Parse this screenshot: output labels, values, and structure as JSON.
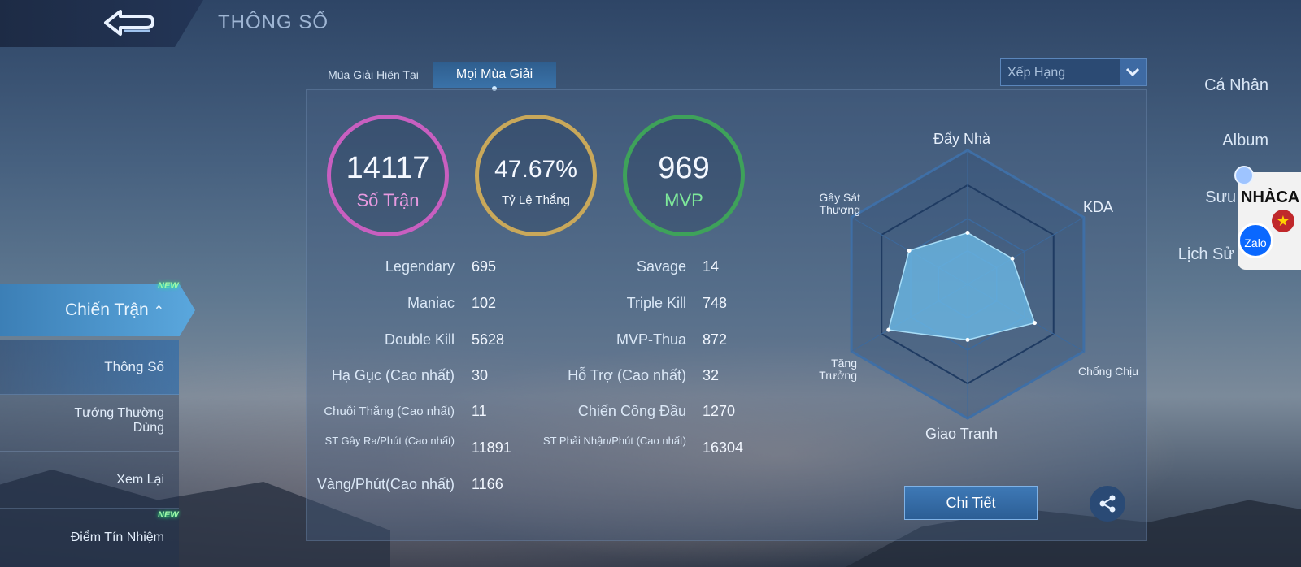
{
  "header": {
    "title": "THÔNG SỐ"
  },
  "sidebar": {
    "items": [
      "Cá Nhân",
      "Album",
      "Sưu Tập",
      "Lịch Sử Đấu"
    ],
    "active": "Chiến Trận",
    "new_badge": "NEW",
    "sub_items": [
      "Thông Số",
      "Tướng Thường Dùng",
      "Xem Lại",
      "Điểm Tín Nhiệm"
    ],
    "sub_new_badge": "NEW"
  },
  "tabs": [
    "Mùa Giải Hiện Tại",
    "Mọi Mùa Giải"
  ],
  "filter": {
    "selected": "Xếp Hạng"
  },
  "summary": {
    "matches": {
      "value": "14117",
      "label": "Số Trận"
    },
    "winrate": {
      "value": "47.67%",
      "label": "Tỷ Lệ Thắng"
    },
    "mvp": {
      "value": "969",
      "label": "MVP"
    }
  },
  "stats_left": [
    {
      "label": "Legendary",
      "value": "695"
    },
    {
      "label": "Maniac",
      "value": "102"
    },
    {
      "label": "Double Kill",
      "value": "5628"
    },
    {
      "label": "Hạ Gục (Cao nhất)",
      "value": "30"
    },
    {
      "label": "Chuỗi Thắng (Cao nhất)",
      "value": "11"
    },
    {
      "label": "ST Gây Ra/Phút (Cao nhất)",
      "value": "11891"
    },
    {
      "label": "Vàng/Phút(Cao nhất)",
      "value": "1166"
    }
  ],
  "stats_right": [
    {
      "label": "Savage",
      "value": "14"
    },
    {
      "label": "Triple Kill",
      "value": "748"
    },
    {
      "label": "MVP-Thua",
      "value": "872"
    },
    {
      "label": "Hỗ Trợ (Cao nhất)",
      "value": "32"
    },
    {
      "label": "Chiến Công Đầu",
      "value": "1270"
    },
    {
      "label": "ST Phải Nhận/Phút (Cao nhất)",
      "value": "16304"
    }
  ],
  "radar": {
    "axes": [
      "Đẩy Nhà",
      "KDA",
      "Chống Chịu",
      "Giao Tranh",
      "Tăng Trưởng",
      "Gây Sát Thương"
    ],
    "values": [
      0.52,
      0.52,
      0.78,
      0.56,
      0.92,
      0.68
    ]
  },
  "buttons": {
    "detail": "Chi Tiết"
  },
  "widget": {
    "brand": "NHÀCA",
    "zalo": "Zalo"
  },
  "colors": {
    "matches": "#c85fc0",
    "winrate": "#c9a85a",
    "mvp": "#3ea25a",
    "mvp_text": "#7ee89a",
    "matches_text": "#e79ae0"
  }
}
